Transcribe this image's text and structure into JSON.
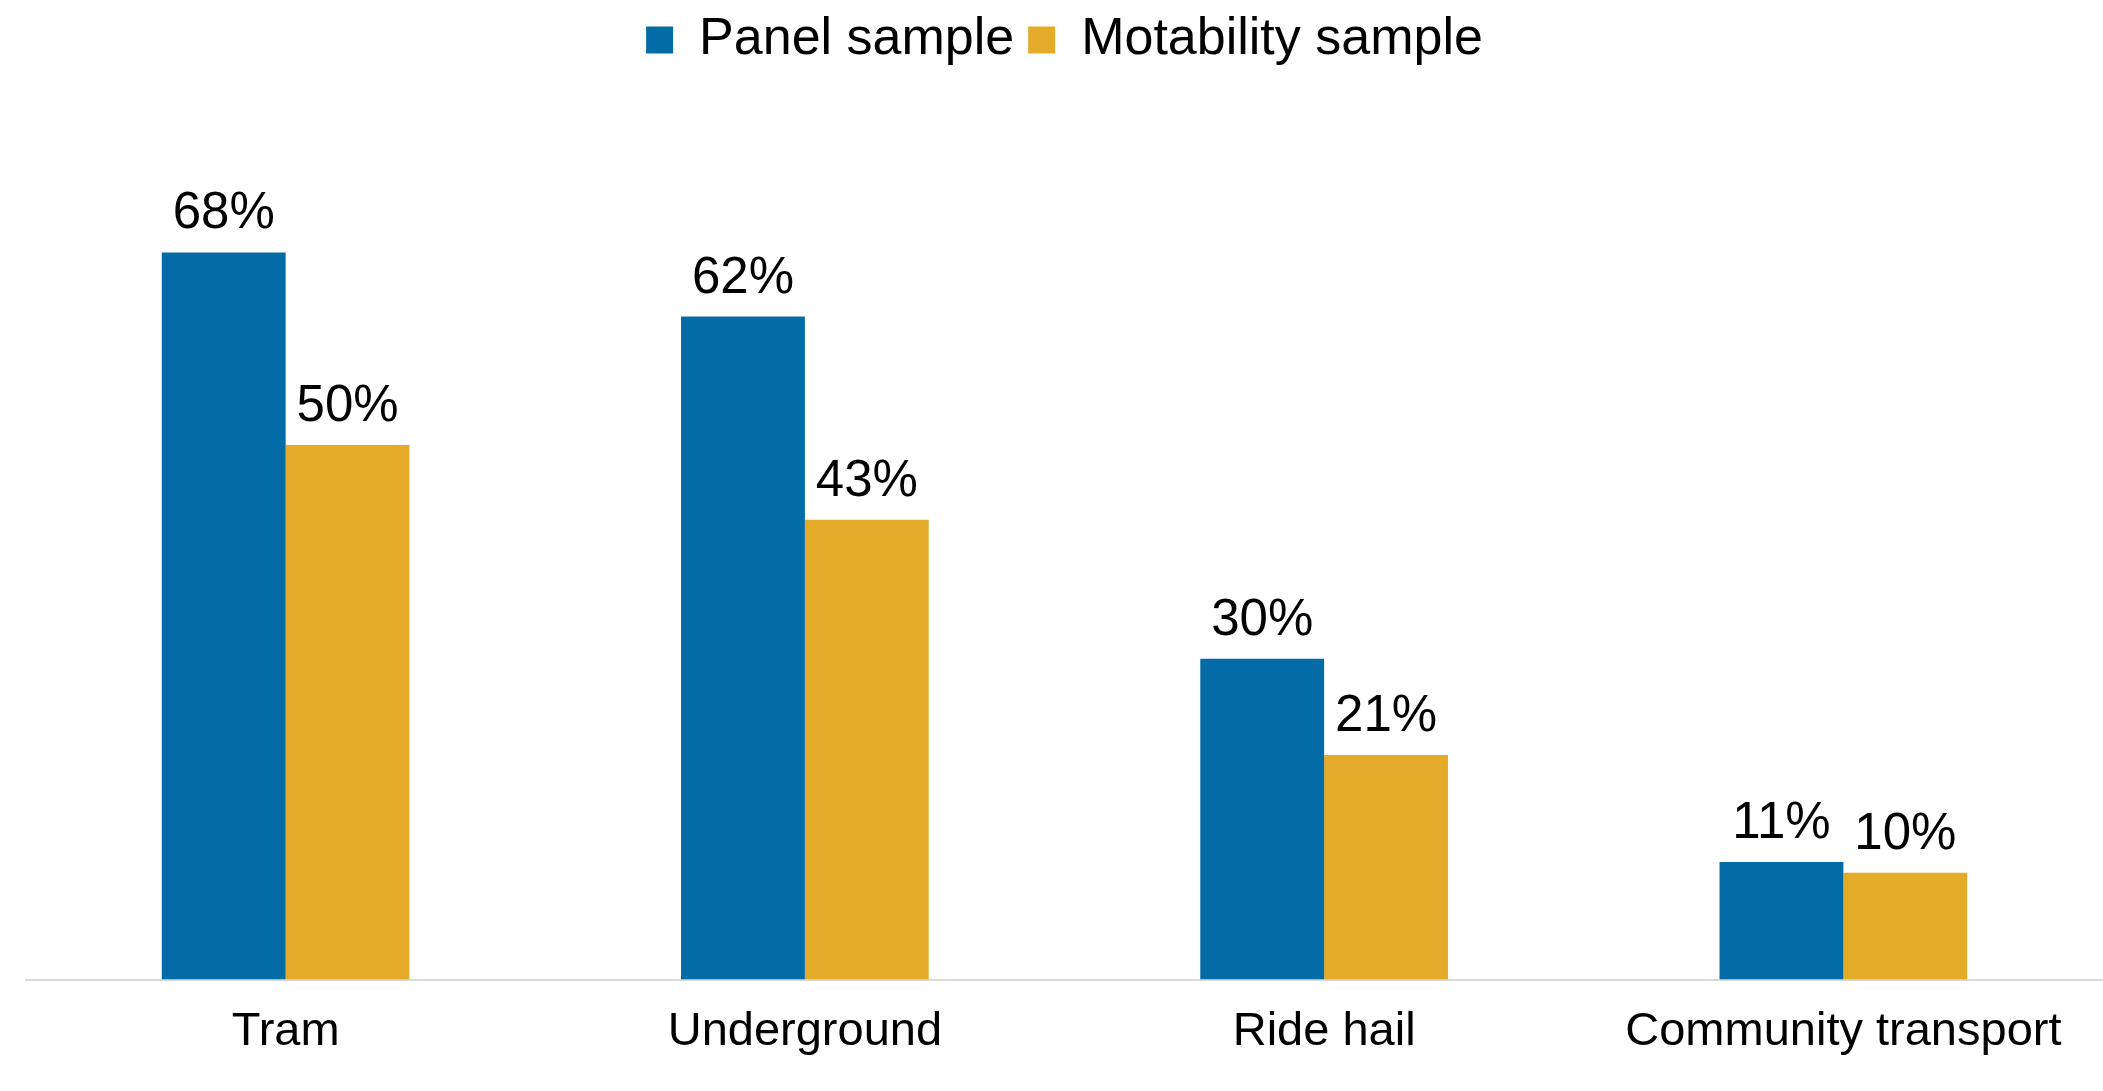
{
  "chart_data": {
    "type": "bar",
    "categories": [
      "Tram",
      "Underground",
      "Ride hail",
      "Community transport"
    ],
    "series": [
      {
        "name": "Panel sample",
        "color": "#036ba6",
        "values": [
          68,
          62,
          30,
          11
        ],
        "value_labels": [
          "68%",
          "62%",
          "30%",
          "11%"
        ]
      },
      {
        "name": "Motability sample",
        "color": "#e4ab28",
        "values": [
          50,
          43,
          21,
          10
        ],
        "value_labels": [
          "50%",
          "43%",
          "21%",
          "10%"
        ]
      }
    ],
    "legend": "top"
  }
}
